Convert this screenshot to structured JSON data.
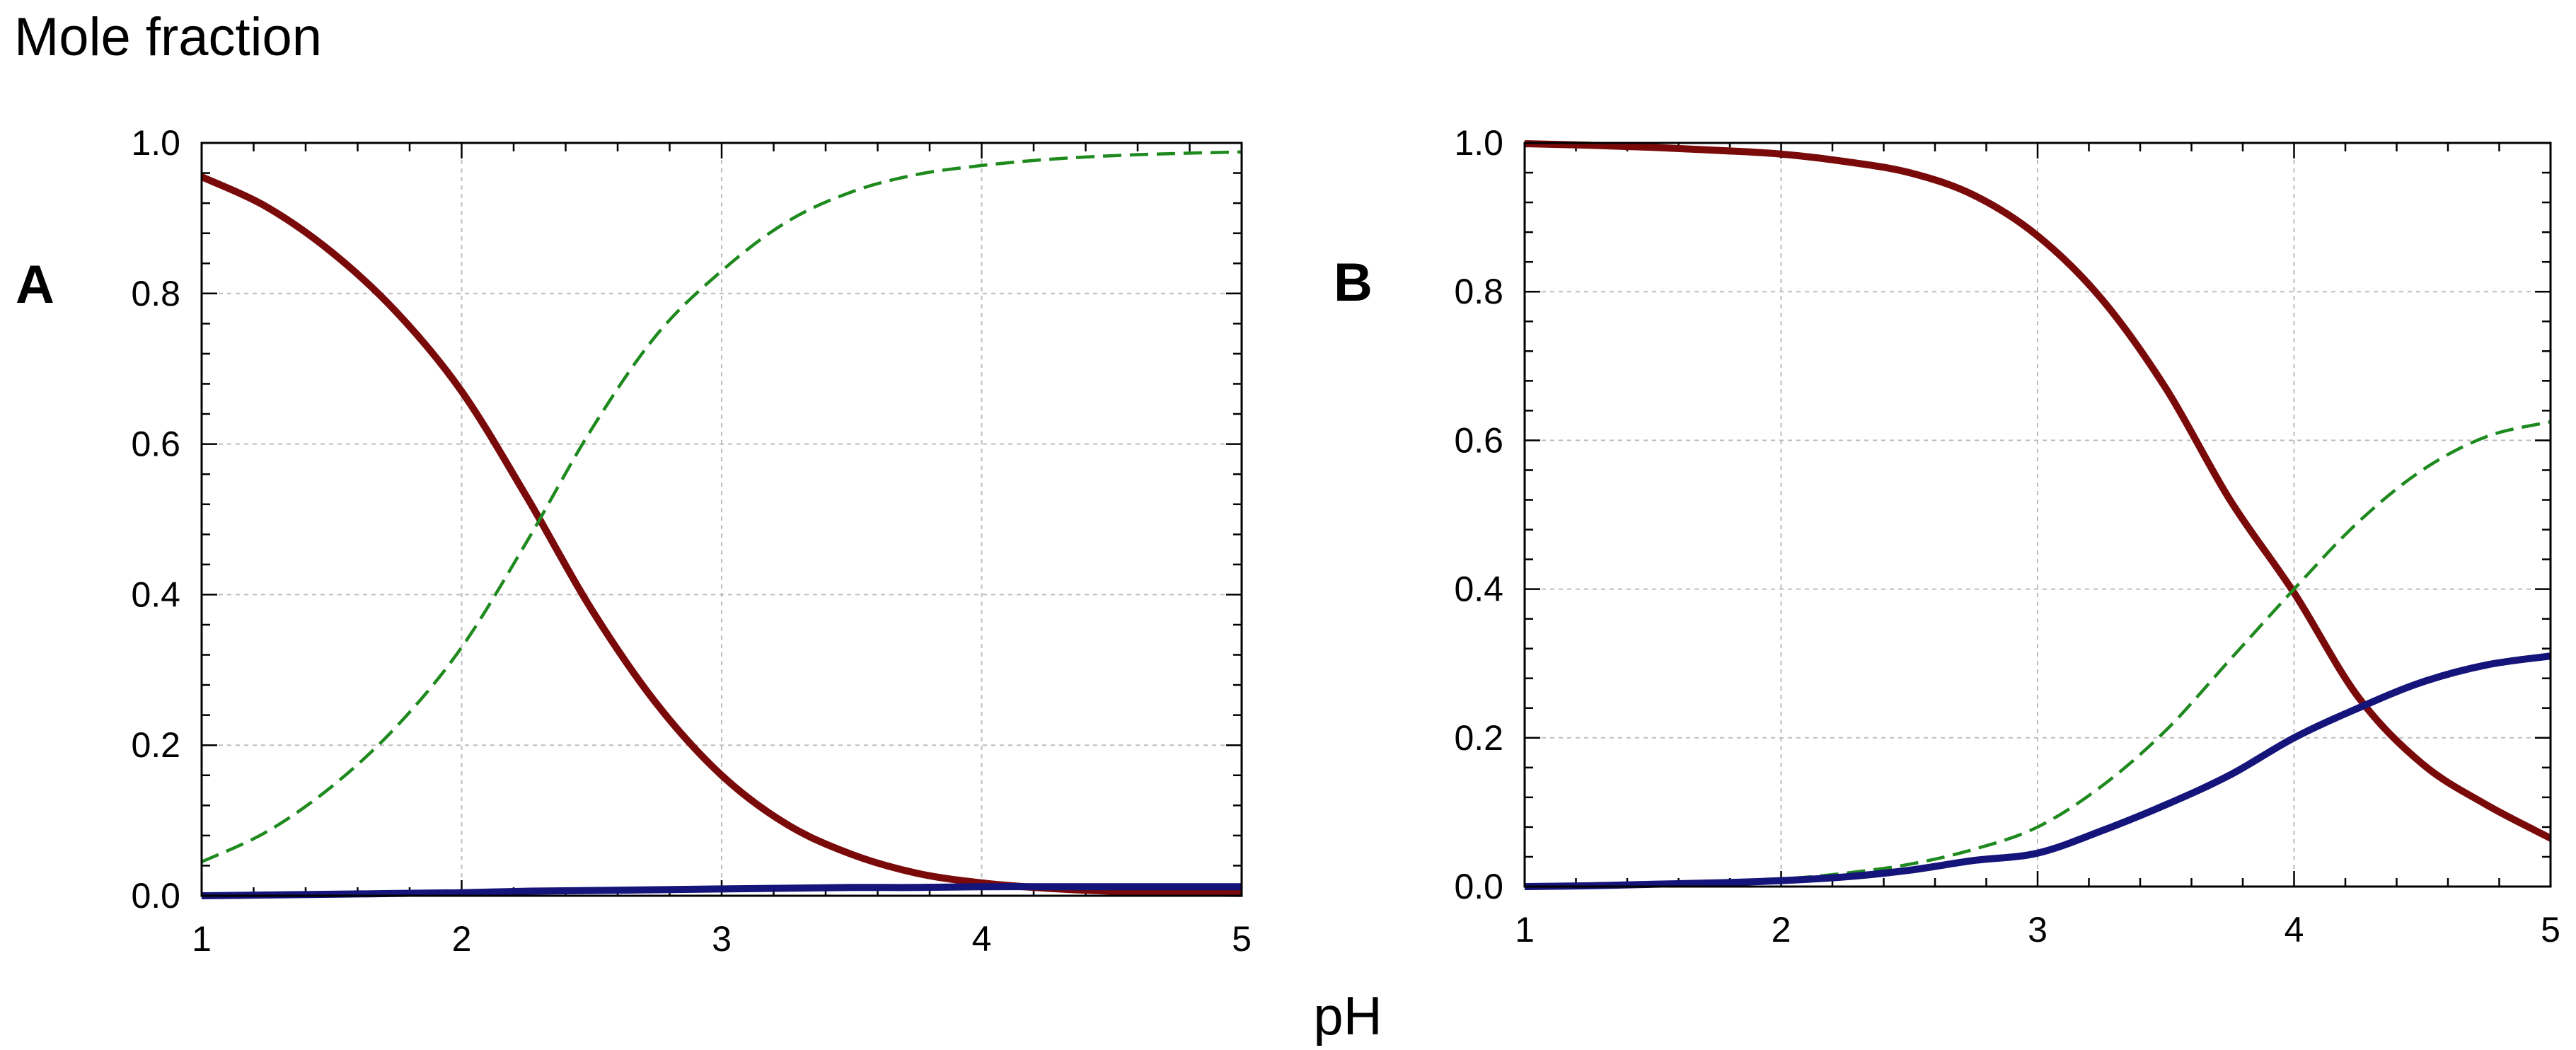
{
  "figure": {
    "ylabel": "Mole fraction",
    "xlabel": "pH"
  },
  "colors": {
    "dark_red": "#7a0a0a",
    "green": "#1e8a1e",
    "navy": "#14147a"
  },
  "chart_data": [
    {
      "type": "line",
      "panel": "A",
      "title": "",
      "xlabel": "pH",
      "ylabel": "Mole fraction",
      "xlim": [
        1,
        5
      ],
      "ylim": [
        0,
        1
      ],
      "xticks": [
        "1",
        "2",
        "3",
        "4",
        "5"
      ],
      "yticks": [
        "0.0",
        "0.2",
        "0.4",
        "0.6",
        "0.8",
        "1.0"
      ],
      "grid": true,
      "x": [
        1.0,
        1.25,
        1.5,
        1.75,
        2.0,
        2.25,
        2.5,
        2.75,
        3.0,
        3.25,
        3.5,
        3.75,
        4.0,
        4.25,
        4.5,
        4.75,
        5.0
      ],
      "series": [
        {
          "name": "dark-red-solid",
          "color": "dark_red",
          "style": "solid",
          "values": [
            0.955,
            0.915,
            0.855,
            0.775,
            0.67,
            0.53,
            0.38,
            0.255,
            0.16,
            0.095,
            0.055,
            0.03,
            0.017,
            0.01,
            0.006,
            0.004,
            0.003
          ]
        },
        {
          "name": "green-dashed",
          "color": "green",
          "style": "dashed",
          "values": [
            0.045,
            0.085,
            0.145,
            0.225,
            0.33,
            0.47,
            0.62,
            0.745,
            0.83,
            0.895,
            0.935,
            0.958,
            0.97,
            0.978,
            0.983,
            0.986,
            0.988
          ]
        },
        {
          "name": "navy-solid",
          "color": "navy",
          "style": "solid",
          "values": [
            0.0,
            0.001,
            0.002,
            0.003,
            0.004,
            0.006,
            0.007,
            0.008,
            0.009,
            0.01,
            0.011,
            0.011,
            0.012,
            0.012,
            0.012,
            0.012,
            0.012
          ]
        }
      ]
    },
    {
      "type": "line",
      "panel": "B",
      "title": "",
      "xlabel": "pH",
      "ylabel": "Mole fraction",
      "xlim": [
        1,
        5
      ],
      "ylim": [
        0,
        1
      ],
      "xticks": [
        "1",
        "2",
        "3",
        "4",
        "5"
      ],
      "yticks": [
        "0.0",
        "0.2",
        "0.4",
        "0.6",
        "0.8",
        "1.0"
      ],
      "grid": true,
      "x": [
        1.0,
        1.25,
        1.5,
        1.75,
        2.0,
        2.25,
        2.5,
        2.75,
        3.0,
        3.25,
        3.5,
        3.75,
        4.0,
        4.25,
        4.5,
        4.75,
        5.0
      ],
      "series": [
        {
          "name": "dark-red-solid",
          "color": "dark_red",
          "style": "solid",
          "values": [
            0.999,
            0.997,
            0.994,
            0.99,
            0.985,
            0.975,
            0.96,
            0.93,
            0.875,
            0.79,
            0.67,
            0.52,
            0.395,
            0.255,
            0.165,
            0.11,
            0.065
          ]
        },
        {
          "name": "green-dashed",
          "color": "green",
          "style": "dashed",
          "values": [
            0.0,
            0.002,
            0.004,
            0.007,
            0.01,
            0.018,
            0.03,
            0.05,
            0.08,
            0.135,
            0.21,
            0.305,
            0.4,
            0.49,
            0.56,
            0.605,
            0.625
          ]
        },
        {
          "name": "navy-solid",
          "color": "navy",
          "style": "solid",
          "values": [
            0.0,
            0.001,
            0.003,
            0.005,
            0.008,
            0.013,
            0.022,
            0.035,
            0.045,
            0.075,
            0.11,
            0.15,
            0.2,
            0.24,
            0.275,
            0.298,
            0.31
          ]
        }
      ]
    }
  ]
}
